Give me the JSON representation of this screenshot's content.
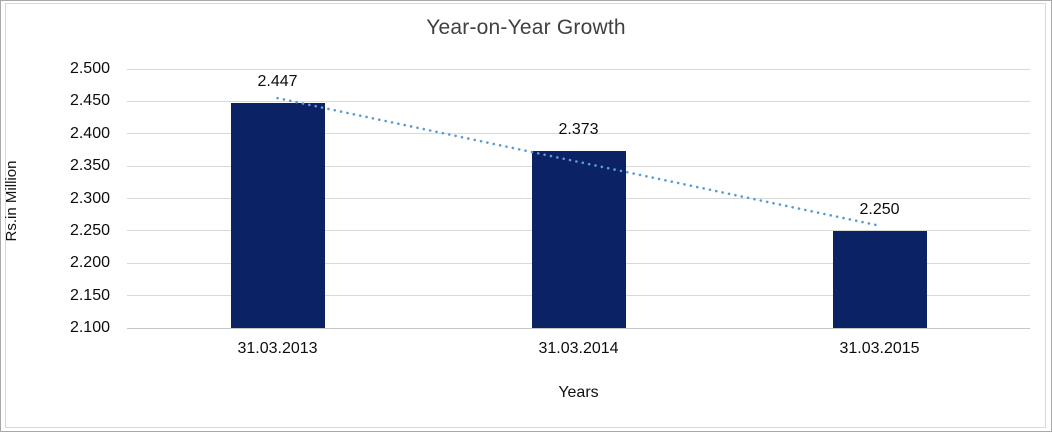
{
  "chart_data": {
    "type": "bar",
    "title": "Year-on-Year Growth",
    "xlabel": "Years",
    "ylabel": "Rs.in Million",
    "categories": [
      "31.03.2013",
      "31.03.2014",
      "31.03.2015"
    ],
    "values": [
      2.447,
      2.373,
      2.25
    ],
    "data_labels": [
      "2.447",
      "2.373",
      "2.250"
    ],
    "ylim": [
      2.1,
      2.5
    ],
    "ytick_step": 0.05,
    "ytick_labels": [
      "2.100",
      "2.150",
      "2.200",
      "2.250",
      "2.300",
      "2.350",
      "2.400",
      "2.450",
      "2.500"
    ],
    "grid": true,
    "legend": "none",
    "bar_color": "#0b2265",
    "gridline_color": "#d9d9d9",
    "title_color": "#404040",
    "trendline": {
      "style": "dotted",
      "color": "#5b9bd5",
      "start_value": 2.455,
      "end_value": 2.258
    }
  }
}
